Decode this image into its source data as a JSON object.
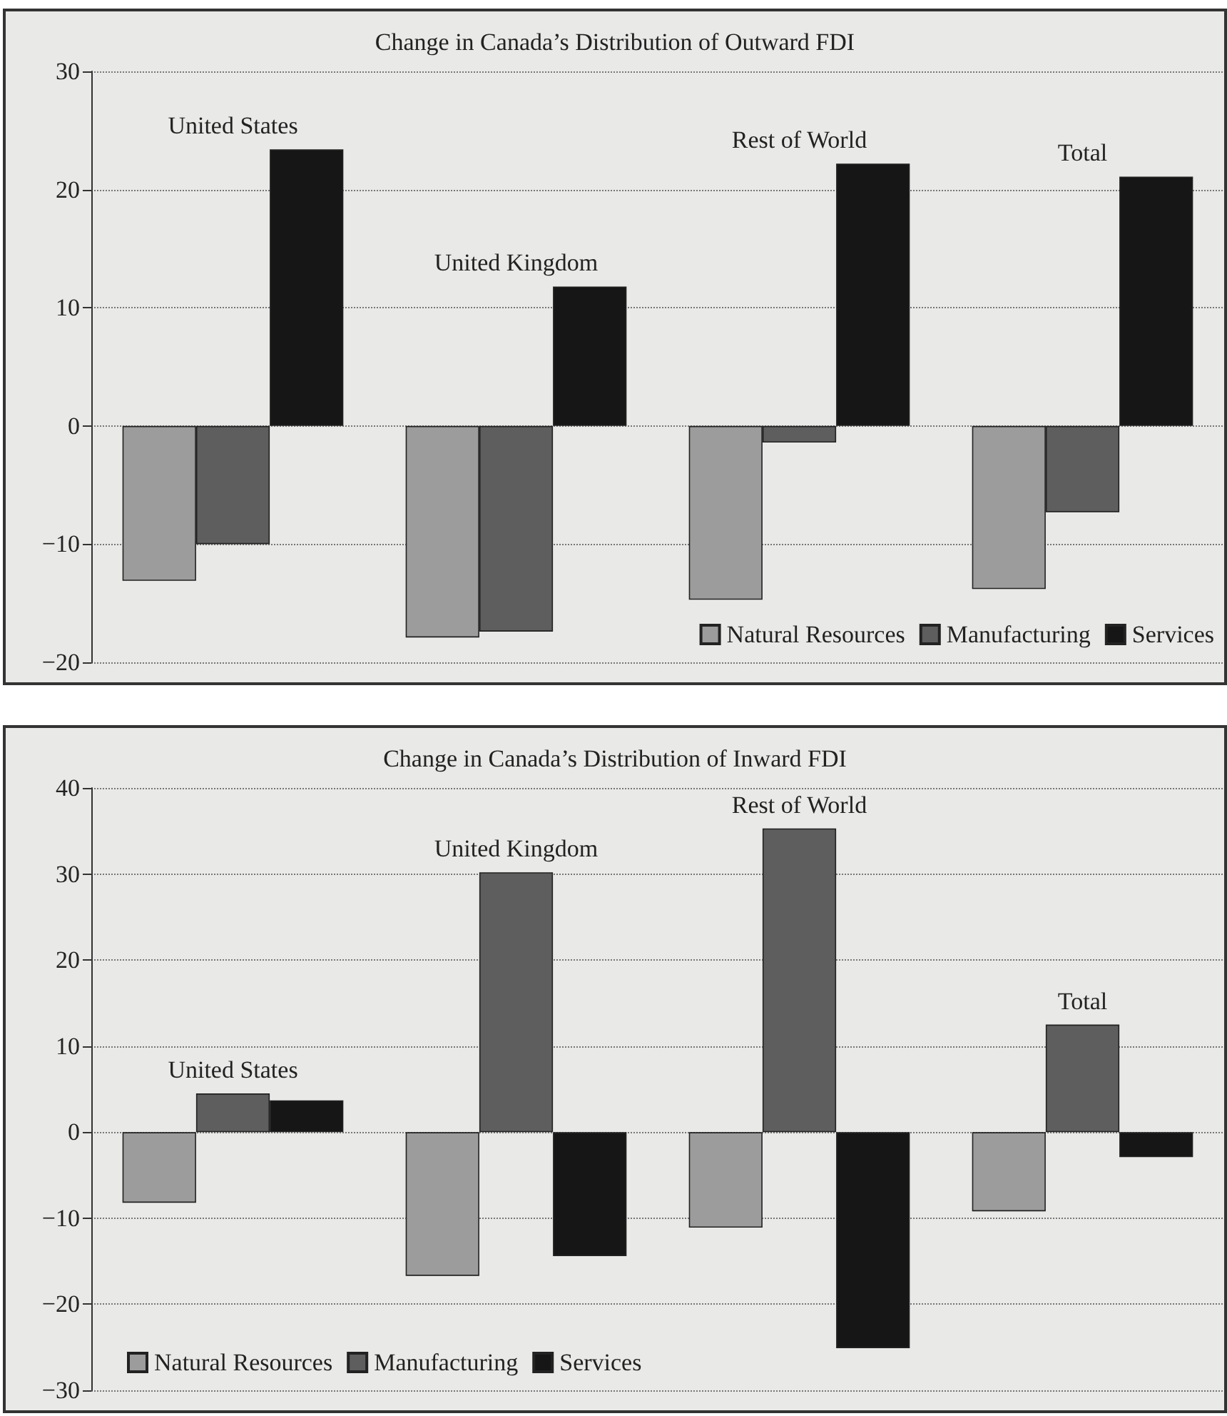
{
  "chart_data": [
    {
      "type": "bar",
      "title": "Change in Canada’s Distribution of Outward FDI",
      "categories": [
        "United States",
        "United Kingdom",
        "Rest of World",
        "Total"
      ],
      "series": [
        {
          "name": "Natural Resources",
          "color": "#9c9c9c",
          "values": [
            -13.1,
            -17.9,
            -14.7,
            -13.8
          ]
        },
        {
          "name": "Manufacturing",
          "color": "#5e5e5e",
          "values": [
            -10,
            -17.4,
            -1.4,
            -7.3
          ]
        },
        {
          "name": "Services",
          "color": "#161616",
          "values": [
            23.4,
            11.8,
            22.2,
            21.1
          ]
        }
      ],
      "ylim": [
        -20,
        30
      ],
      "yticks": [
        -20,
        -10,
        0,
        10,
        20,
        30
      ],
      "grid": "y",
      "legend": "bottom right"
    },
    {
      "type": "bar",
      "title": "Change in Canada’s Distribution of Inward FDI",
      "categories": [
        "United States",
        "United Kingdom",
        "Rest of World",
        "Total"
      ],
      "series": [
        {
          "name": "Natural Resources",
          "color": "#9c9c9c",
          "values": [
            -8.2,
            -16.7,
            -11.1,
            -9.2
          ]
        },
        {
          "name": "Manufacturing",
          "color": "#5e5e5e",
          "values": [
            4.5,
            30.2,
            35.3,
            12.5
          ]
        },
        {
          "name": "Services",
          "color": "#161616",
          "values": [
            3.7,
            -14.4,
            -25.1,
            -2.9
          ]
        }
      ],
      "ylim": [
        -30,
        40
      ],
      "yticks": [
        -30,
        -20,
        -10,
        0,
        10,
        20,
        30,
        40
      ],
      "grid": "y",
      "legend": "bottom left"
    }
  ]
}
